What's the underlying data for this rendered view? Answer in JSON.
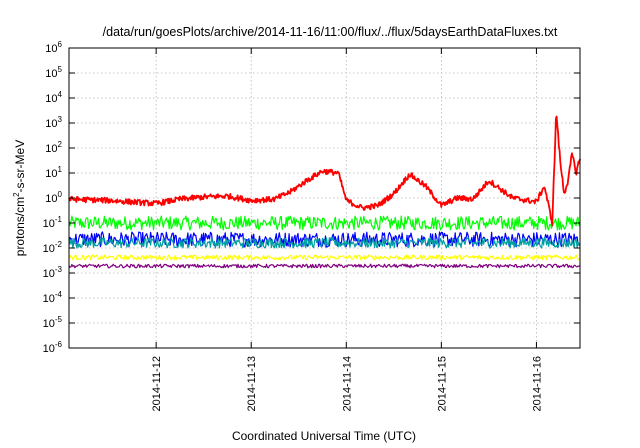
{
  "chart_data": {
    "type": "line",
    "title": "/data/run/goesPlots/archive/2014-11-16/11:00/flux/../flux/5daysEarthDataFluxes.txt",
    "xlabel": "Coordinated Universal Time (UTC)",
    "ylabel": {
      "base": "protons/cm",
      "exp": "2",
      "rest": "-s-sr-MeV"
    },
    "y_scale": "log",
    "ylim": [
      1e-06,
      1000000.0
    ],
    "y_ticks": [
      {
        "base": "10",
        "exp": "-6",
        "value": 1e-06
      },
      {
        "base": "10",
        "exp": "-5",
        "value": 1e-05
      },
      {
        "base": "10",
        "exp": "-4",
        "value": 0.0001
      },
      {
        "base": "10",
        "exp": "-3",
        "value": 0.001
      },
      {
        "base": "10",
        "exp": "-2",
        "value": 0.01
      },
      {
        "base": "10",
        "exp": "-1",
        "value": 0.1
      },
      {
        "base": "10",
        "exp": "0",
        "value": 1
      },
      {
        "base": "10",
        "exp": "1",
        "value": 10
      },
      {
        "base": "10",
        "exp": "2",
        "value": 100
      },
      {
        "base": "10",
        "exp": "3",
        "value": 1000
      },
      {
        "base": "10",
        "exp": "4",
        "value": 10000
      },
      {
        "base": "10",
        "exp": "5",
        "value": 100000
      },
      {
        "base": "10",
        "exp": "6",
        "value": 1000000
      }
    ],
    "x_range_days": [
      "2014-11-11 02:00",
      "2014-11-16 11:00"
    ],
    "x_ticks": [
      "2014-11-12",
      "2014-11-13",
      "2014-11-14",
      "2014-11-15",
      "2014-11-16"
    ],
    "grid": true,
    "legend": "none",
    "series": [
      {
        "color": "#ff0000",
        "x": [
          "2014-11-11 02:00",
          "2014-11-11 12:00",
          "2014-11-12 00:00",
          "2014-11-12 06:00",
          "2014-11-12 12:00",
          "2014-11-12 18:00",
          "2014-11-13 00:00",
          "2014-11-13 06:00",
          "2014-11-13 10:00",
          "2014-11-13 14:00",
          "2014-11-13 18:00",
          "2014-11-13 22:00",
          "2014-11-14 00:00",
          "2014-11-14 04:00",
          "2014-11-14 08:00",
          "2014-11-14 12:00",
          "2014-11-14 16:00",
          "2014-11-14 20:00",
          "2014-11-15 00:00",
          "2014-11-15 04:00",
          "2014-11-15 08:00",
          "2014-11-15 12:00",
          "2014-11-15 18:00",
          "2014-11-16 00:00",
          "2014-11-16 02:00",
          "2014-11-16 04:00",
          "2014-11-16 05:00",
          "2014-11-16 06:00",
          "2014-11-16 07:00",
          "2014-11-16 08:00",
          "2014-11-16 09:00",
          "2014-11-16 10:00",
          "2014-11-16 11:00"
        ],
        "y": [
          0.9,
          0.8,
          0.6,
          0.9,
          1.1,
          1.2,
          0.8,
          0.9,
          1.8,
          5,
          12,
          10,
          0.8,
          0.4,
          0.5,
          1.5,
          9,
          3,
          0.5,
          1.0,
          0.9,
          5,
          1.0,
          0.7,
          3,
          0.1,
          3000,
          30,
          1.5,
          5,
          60,
          10,
          40
        ]
      },
      {
        "color": "#00ff00",
        "baseline": 0.1,
        "spread": 1.9
      },
      {
        "color": "#0000ff",
        "baseline": 0.022,
        "spread": 2.0
      },
      {
        "color": "#00a0a0",
        "baseline": 0.016,
        "spread": 1.6
      },
      {
        "color": "#ffff00",
        "baseline": 0.0042,
        "spread": 1.25
      },
      {
        "color": "#800080",
        "baseline": 0.0019,
        "spread": 1.18
      }
    ]
  }
}
